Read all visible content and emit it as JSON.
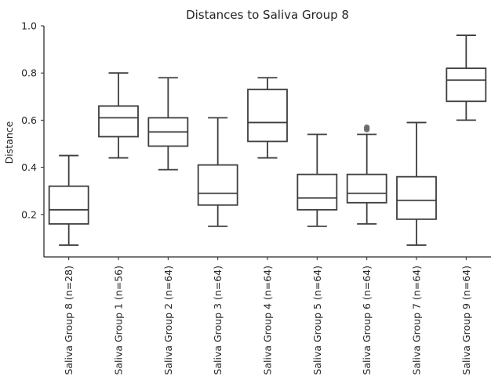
{
  "chart_data": {
    "type": "box",
    "title": "Distances to Saliva Group 8",
    "xlabel": "",
    "ylabel": "Distance",
    "ylim": [
      0.02,
      1.0
    ],
    "yticks": [
      0.2,
      0.4,
      0.6,
      0.8,
      1.0
    ],
    "yticklabels": [
      "0.2",
      "0.4",
      "0.6",
      "0.8",
      "1.0"
    ],
    "grid": false,
    "colors": {
      "box_line": "#3d3d3d",
      "box_fill": "#ffffff",
      "outlier": "#6b6b6b",
      "axis": "#262626"
    },
    "categories": [
      "Saliva Group 8 (n=28)",
      "Saliva Group 1 (n=56)",
      "Saliva Group 2 (n=64)",
      "Saliva Group 3 (n=64)",
      "Saliva Group 4 (n=64)",
      "Saliva Group 5 (n=64)",
      "Saliva Group 6 (n=64)",
      "Saliva Group 7 (n=64)",
      "Saliva Group 9 (n=64)"
    ],
    "boxes": [
      {
        "whisker_low": 0.07,
        "q1": 0.16,
        "median": 0.22,
        "q3": 0.32,
        "whisker_high": 0.45,
        "outliers": []
      },
      {
        "whisker_low": 0.44,
        "q1": 0.53,
        "median": 0.61,
        "q3": 0.66,
        "whisker_high": 0.8,
        "outliers": []
      },
      {
        "whisker_low": 0.39,
        "q1": 0.49,
        "median": 0.55,
        "q3": 0.61,
        "whisker_high": 0.78,
        "outliers": []
      },
      {
        "whisker_low": 0.15,
        "q1": 0.24,
        "median": 0.29,
        "q3": 0.41,
        "whisker_high": 0.61,
        "outliers": []
      },
      {
        "whisker_low": 0.44,
        "q1": 0.51,
        "median": 0.59,
        "q3": 0.73,
        "whisker_high": 0.78,
        "outliers": []
      },
      {
        "whisker_low": 0.15,
        "q1": 0.22,
        "median": 0.27,
        "q3": 0.37,
        "whisker_high": 0.54,
        "outliers": []
      },
      {
        "whisker_low": 0.16,
        "q1": 0.25,
        "median": 0.29,
        "q3": 0.37,
        "whisker_high": 0.54,
        "outliers": [
          0.56,
          0.565,
          0.57
        ]
      },
      {
        "whisker_low": 0.07,
        "q1": 0.18,
        "median": 0.26,
        "q3": 0.36,
        "whisker_high": 0.59,
        "outliers": []
      },
      {
        "whisker_low": 0.6,
        "q1": 0.68,
        "median": 0.77,
        "q3": 0.82,
        "whisker_high": 0.96,
        "outliers": []
      }
    ]
  }
}
